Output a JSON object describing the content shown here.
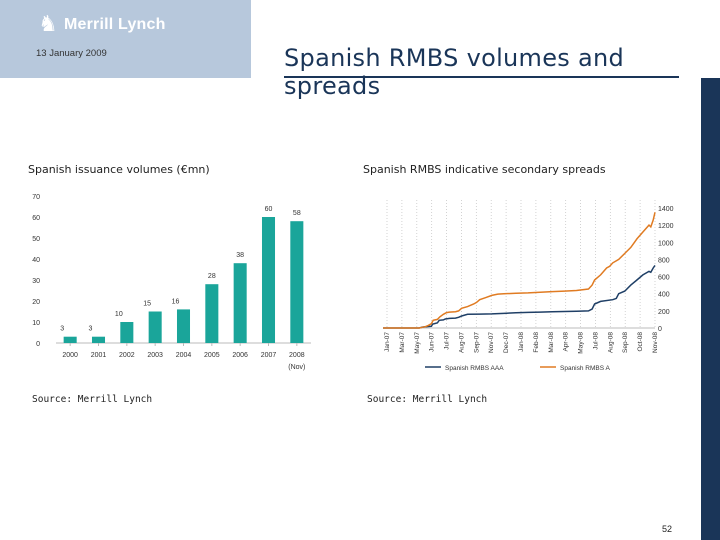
{
  "header": {
    "brand": "Merrill Lynch",
    "date": "13 January 2009",
    "title": "Spanish RMBS volumes and spreads",
    "colors": {
      "header_box": "#b7c8dc",
      "navy": "#1a3558"
    }
  },
  "left_panel": {
    "title": "Spanish issuance volumes (€mn)",
    "source": "Source: Merrill Lynch"
  },
  "right_panel": {
    "title": "Spanish RMBS indicative secondary spreads",
    "source": "Source: Merrill Lynch"
  },
  "page_number": "52",
  "chart_data": [
    {
      "type": "bar",
      "color": "#1aa59a",
      "categories": [
        "2000",
        "2001",
        "2002",
        "2003",
        "2004",
        "2005",
        "2006",
        "2007",
        "2008"
      ],
      "category_sublabels": [
        "",
        "",
        "",
        "",
        "",
        "",
        "",
        "",
        "(Nov)"
      ],
      "values": [
        3,
        3,
        10,
        15,
        16,
        28,
        38,
        60,
        58
      ],
      "data_labels": [
        "3",
        "3",
        "10",
        "15",
        "16",
        "28",
        "38",
        "60",
        "58"
      ],
      "ylim": [
        0,
        70
      ],
      "yticks": [
        "0",
        "10",
        "20",
        "30",
        "40",
        "50",
        "60",
        "70"
      ],
      "grid": false
    },
    {
      "type": "line",
      "xlabels": [
        "Jan-07",
        "Mar-07",
        "May-07",
        "Jun-07",
        "Jul-07",
        "Aug-07",
        "Sep-07",
        "Nov-07",
        "Dec-07",
        "Jan-08",
        "Feb-08",
        "Mar-08",
        "Apr-08",
        "May-08",
        "Jul-08",
        "Aug-08",
        "Sep-08",
        "Oct-08",
        "Nov-08"
      ],
      "ylim": [
        0,
        1400
      ],
      "yticks": [
        "0",
        "200",
        "400",
        "600",
        "800",
        "1000",
        "1200",
        "1400"
      ],
      "grid": "vertical-dotted",
      "legend_position": "bottom",
      "series": [
        {
          "name": "Spanish RMBS AAA",
          "color": "#1f3f66",
          "points": [
            [
              0,
              0
            ],
            [
              6,
              0
            ],
            [
              6.5,
              10
            ],
            [
              7,
              15
            ],
            [
              8,
              20
            ],
            [
              8.2,
              45
            ],
            [
              9,
              60
            ],
            [
              9.3,
              90
            ],
            [
              10,
              95
            ],
            [
              10.3,
              105
            ],
            [
              11,
              112
            ],
            [
              12,
              115
            ],
            [
              12.5,
              125
            ],
            [
              13,
              140
            ],
            [
              13.5,
              150
            ],
            [
              14,
              160
            ],
            [
              16,
              162
            ],
            [
              18,
              165
            ],
            [
              20,
              170
            ],
            [
              22,
              178
            ],
            [
              24,
              182
            ],
            [
              26,
              186
            ],
            [
              28,
              190
            ],
            [
              30,
              193
            ],
            [
              32,
              195
            ],
            [
              34,
              200
            ],
            [
              34.6,
              220
            ],
            [
              35,
              280
            ],
            [
              36,
              310
            ],
            [
              38,
              330
            ],
            [
              38.6,
              345
            ],
            [
              39,
              400
            ],
            [
              40,
              430
            ],
            [
              41,
              500
            ],
            [
              42,
              560
            ],
            [
              43,
              620
            ],
            [
              44,
              660
            ],
            [
              44.3,
              650
            ],
            [
              44.7,
              700
            ],
            [
              45,
              730
            ]
          ]
        },
        {
          "name": "Spanish RMBS A",
          "color": "#e07b22",
          "points": [
            [
              0,
              0
            ],
            [
              6,
              0
            ],
            [
              6.5,
              8
            ],
            [
              7,
              15
            ],
            [
              7.5,
              30
            ],
            [
              8,
              50
            ],
            [
              8.3,
              90
            ],
            [
              9,
              100
            ],
            [
              9.4,
              130
            ],
            [
              10,
              160
            ],
            [
              10.5,
              180
            ],
            [
              11,
              185
            ],
            [
              12,
              190
            ],
            [
              12.5,
              200
            ],
            [
              13,
              230
            ],
            [
              14,
              250
            ],
            [
              15,
              280
            ],
            [
              15.5,
              300
            ],
            [
              16,
              330
            ],
            [
              17,
              355
            ],
            [
              18,
              380
            ],
            [
              19,
              395
            ],
            [
              20,
              400
            ],
            [
              22,
              405
            ],
            [
              24,
              410
            ],
            [
              26,
              418
            ],
            [
              28,
              425
            ],
            [
              30,
              430
            ],
            [
              32,
              438
            ],
            [
              34,
              455
            ],
            [
              34.6,
              500
            ],
            [
              35,
              560
            ],
            [
              36,
              620
            ],
            [
              37,
              700
            ],
            [
              37.5,
              720
            ],
            [
              38,
              760
            ],
            [
              39,
              800
            ],
            [
              40,
              870
            ],
            [
              41,
              940
            ],
            [
              42,
              1040
            ],
            [
              43,
              1120
            ],
            [
              44,
              1200
            ],
            [
              44.3,
              1180
            ],
            [
              44.7,
              1260
            ],
            [
              45,
              1350
            ]
          ]
        }
      ],
      "x_domain": [
        0,
        45
      ]
    }
  ]
}
